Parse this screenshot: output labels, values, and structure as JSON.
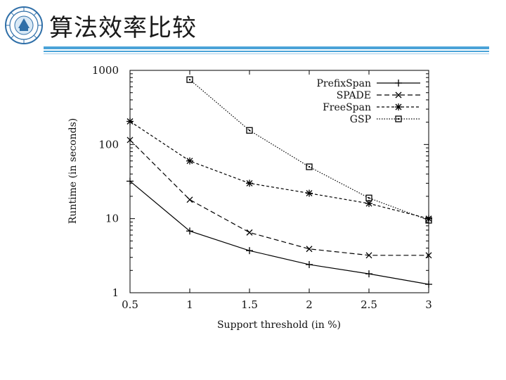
{
  "page": {
    "title": "算法效率比较",
    "logo_icon": "university-seal-icon",
    "accent_color": "#4aa3d8"
  },
  "chart_data": {
    "type": "line",
    "title": "",
    "xlabel": "Support threshold (in %)",
    "ylabel": "Runtime (in seconds)",
    "yscale": "log",
    "xlim": [
      0.5,
      3
    ],
    "ylim": [
      1,
      1000
    ],
    "x_ticks": [
      "0.5",
      "1",
      "1.5",
      "2",
      "2.5",
      "3"
    ],
    "y_ticks": [
      "1",
      "10",
      "100",
      "1000"
    ],
    "grid": false,
    "legend_position": "top-right",
    "series": [
      {
        "name": "PrefixSpan",
        "marker": "plus",
        "dash": "solid",
        "x": [
          0.5,
          1,
          1.5,
          2,
          2.5,
          3
        ],
        "values": [
          32,
          6.8,
          3.7,
          2.4,
          1.8,
          1.3
        ]
      },
      {
        "name": "SPADE",
        "marker": "cross",
        "dash": "dashed",
        "x": [
          0.5,
          1,
          1.5,
          2,
          2.5,
          3
        ],
        "values": [
          115,
          18,
          6.5,
          3.9,
          3.2,
          3.2
        ]
      },
      {
        "name": "FreeSpan",
        "marker": "star",
        "dash": "short-dashed",
        "x": [
          0.5,
          1,
          1.5,
          2,
          2.5,
          3
        ],
        "values": [
          205,
          60,
          30,
          22,
          16,
          10
        ]
      },
      {
        "name": "GSP",
        "marker": "square",
        "dash": "dotted",
        "x": [
          1,
          1.5,
          2,
          2.5,
          3
        ],
        "values": [
          750,
          155,
          50,
          19,
          9.5
        ]
      }
    ]
  }
}
